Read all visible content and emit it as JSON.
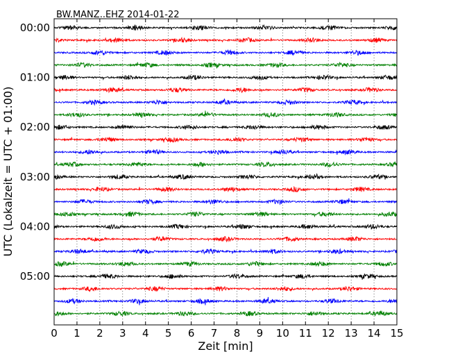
{
  "chart_data": {
    "type": "line",
    "title": "BW.MANZ..EHZ 2014-01-22",
    "xlabel": "Zeit  [min]",
    "ylabel": "UTC (Lokalzeit = UTC + 01:00)",
    "xlim": [
      0,
      15
    ],
    "x_ticks": [
      "0",
      "1",
      "2",
      "3",
      "4",
      "5",
      "6",
      "7",
      "8",
      "9",
      "10",
      "11",
      "12",
      "13",
      "14",
      "15"
    ],
    "y_tick_labels": [
      "00:00",
      "01:00",
      "02:00",
      "03:00",
      "04:00",
      "05:00"
    ],
    "y_tick_row_indices": [
      0,
      4,
      8,
      12,
      16,
      20
    ],
    "row_minutes": 15,
    "row_count": 24,
    "row_colors": [
      "#000000",
      "#ff0000",
      "#0000ff",
      "#008000"
    ],
    "grid": "vertical dotted at each minute",
    "series": [
      {
        "start": "00:00",
        "color": "#000000"
      },
      {
        "start": "00:15",
        "color": "#ff0000"
      },
      {
        "start": "00:30",
        "color": "#0000ff"
      },
      {
        "start": "00:45",
        "color": "#008000"
      },
      {
        "start": "01:00",
        "color": "#000000"
      },
      {
        "start": "01:15",
        "color": "#ff0000"
      },
      {
        "start": "01:30",
        "color": "#0000ff"
      },
      {
        "start": "01:45",
        "color": "#008000"
      },
      {
        "start": "02:00",
        "color": "#000000"
      },
      {
        "start": "02:15",
        "color": "#ff0000"
      },
      {
        "start": "02:30",
        "color": "#0000ff"
      },
      {
        "start": "02:45",
        "color": "#008000"
      },
      {
        "start": "03:00",
        "color": "#000000"
      },
      {
        "start": "03:15",
        "color": "#ff0000"
      },
      {
        "start": "03:30",
        "color": "#0000ff"
      },
      {
        "start": "03:45",
        "color": "#008000"
      },
      {
        "start": "04:00",
        "color": "#000000"
      },
      {
        "start": "04:15",
        "color": "#ff0000"
      },
      {
        "start": "04:30",
        "color": "#0000ff"
      },
      {
        "start": "04:45",
        "color": "#008000"
      },
      {
        "start": "05:00",
        "color": "#000000"
      },
      {
        "start": "05:15",
        "color": "#ff0000"
      },
      {
        "start": "05:30",
        "color": "#0000ff"
      },
      {
        "start": "05:45",
        "color": "#008000"
      }
    ]
  }
}
